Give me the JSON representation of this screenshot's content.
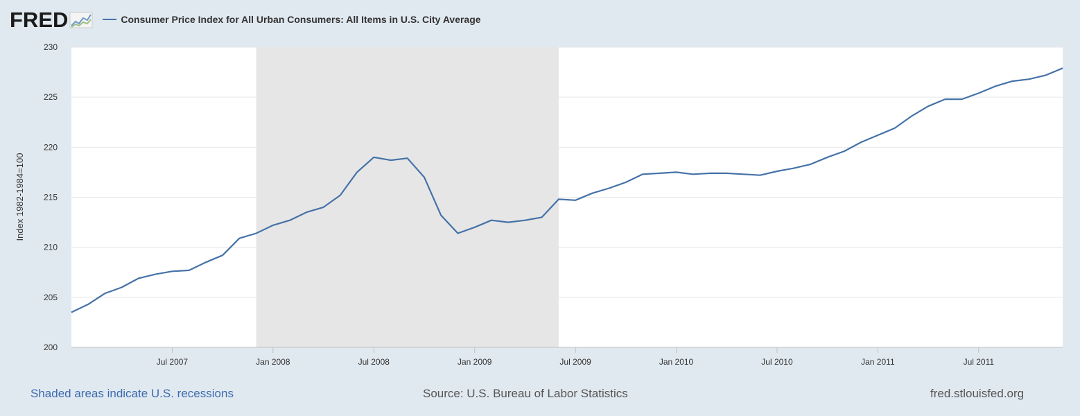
{
  "header": {
    "logo": "FRED",
    "logo_icon": "trend-graph-icon"
  },
  "colors": {
    "series": "#4572a7",
    "recession": "#e6e6e6",
    "background": "#e1e9f0",
    "plot": "#ffffff",
    "link": "#3c6bb0"
  },
  "footer": {
    "recession_note": "Shaded areas indicate U.S. recessions",
    "source": "Source: U.S. Bureau of Labor Statistics",
    "site": "fred.stlouisfed.org"
  },
  "chart_data": {
    "type": "line",
    "title": "",
    "xlabel": "",
    "ylabel": "Index 1982-1984=100",
    "ylim": [
      200,
      230
    ],
    "yticks": [
      200,
      205,
      210,
      215,
      220,
      225,
      230
    ],
    "xlim": [
      "2007-01",
      "2011-12"
    ],
    "xticks": [
      {
        "date": "2007-07",
        "label": "Jul 2007"
      },
      {
        "date": "2008-01",
        "label": "Jan 2008"
      },
      {
        "date": "2008-07",
        "label": "Jul 2008"
      },
      {
        "date": "2009-01",
        "label": "Jan 2009"
      },
      {
        "date": "2009-07",
        "label": "Jul 2009"
      },
      {
        "date": "2010-01",
        "label": "Jan 2010"
      },
      {
        "date": "2010-07",
        "label": "Jul 2010"
      },
      {
        "date": "2011-01",
        "label": "Jan 2011"
      },
      {
        "date": "2011-07",
        "label": "Jul 2011"
      }
    ],
    "grid": true,
    "legend": "top-left",
    "recessions": [
      {
        "start": "2007-12",
        "end": "2009-06"
      }
    ],
    "series": [
      {
        "name": "Consumer Price Index for All Urban Consumers: All Items in U.S. City Average",
        "x": [
          "2007-01",
          "2007-02",
          "2007-03",
          "2007-04",
          "2007-05",
          "2007-06",
          "2007-07",
          "2007-08",
          "2007-09",
          "2007-10",
          "2007-11",
          "2007-12",
          "2008-01",
          "2008-02",
          "2008-03",
          "2008-04",
          "2008-05",
          "2008-06",
          "2008-07",
          "2008-08",
          "2008-09",
          "2008-10",
          "2008-11",
          "2008-12",
          "2009-01",
          "2009-02",
          "2009-03",
          "2009-04",
          "2009-05",
          "2009-06",
          "2009-07",
          "2009-08",
          "2009-09",
          "2009-10",
          "2009-11",
          "2009-12",
          "2010-01",
          "2010-02",
          "2010-03",
          "2010-04",
          "2010-05",
          "2010-06",
          "2010-07",
          "2010-08",
          "2010-09",
          "2010-10",
          "2010-11",
          "2010-12",
          "2011-01",
          "2011-02",
          "2011-03",
          "2011-04",
          "2011-05",
          "2011-06",
          "2011-07",
          "2011-08",
          "2011-09",
          "2011-10",
          "2011-11",
          "2011-12"
        ],
        "values": [
          203.5,
          204.3,
          205.4,
          206.0,
          206.9,
          207.3,
          207.6,
          207.7,
          208.5,
          209.2,
          210.9,
          211.4,
          212.2,
          212.7,
          213.5,
          214.0,
          215.2,
          217.5,
          219.0,
          218.7,
          218.9,
          217.0,
          213.2,
          211.4,
          212.0,
          212.7,
          212.5,
          212.7,
          213.0,
          214.8,
          214.7,
          215.4,
          215.9,
          216.5,
          217.3,
          217.4,
          217.5,
          217.3,
          217.4,
          217.4,
          217.3,
          217.2,
          217.6,
          217.9,
          218.3,
          219.0,
          219.6,
          220.5,
          221.2,
          221.9,
          223.1,
          224.1,
          224.8,
          224.8,
          225.4,
          226.1,
          226.6,
          226.8,
          227.2,
          227.9
        ]
      }
    ]
  }
}
